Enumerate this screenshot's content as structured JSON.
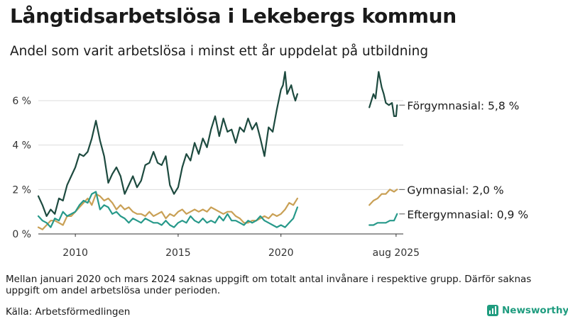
{
  "title": "Långtidsarbetslösa i Lekebergs kommun",
  "subtitle": "Andel som varit arbetslösa i minst ett år uppdelat på utbildning",
  "note": "Mellan januari 2020 och mars 2024 saknas uppgift om totalt antal invånare i respektive grupp. Därför saknas uppgift om andel arbetslösa under perioden.",
  "source": "Källa: Arbetsförmedlingen",
  "brand": "Newsworthy",
  "colors": {
    "forgymnasial": "#1d4a3f",
    "gymnasial": "#c9a055",
    "eftergymnasial": "#27998a",
    "grid": "#dddddd",
    "axis": "#333333"
  },
  "chart_data": {
    "type": "line",
    "title": "Långtidsarbetslösa i Lekebergs kommun",
    "xlabel": "",
    "ylabel": "",
    "xlim": [
      2008.2,
      2025.95
    ],
    "ylim": [
      0,
      7.5
    ],
    "y_ticks": [
      0,
      2,
      4,
      6
    ],
    "y_tick_labels": [
      "0 %",
      "2 %",
      "4 %",
      "6 %"
    ],
    "x_ticks": [
      2010,
      2015,
      2020,
      2025.6
    ],
    "x_tick_labels": [
      "2010",
      "2015",
      "2020",
      "aug 2025"
    ],
    "gap": [
      2020.9,
      2024.25
    ],
    "series": [
      {
        "name": "Förgymnasial",
        "end_label": "Förgymnasial: 5,8 %",
        "color_key": "forgymnasial",
        "segments": [
          [
            [
              2008.2,
              1.7
            ],
            [
              2008.4,
              1.3
            ],
            [
              2008.6,
              0.8
            ],
            [
              2008.8,
              1.1
            ],
            [
              2009.0,
              0.9
            ],
            [
              2009.2,
              1.6
            ],
            [
              2009.4,
              1.5
            ],
            [
              2009.6,
              2.2
            ],
            [
              2009.8,
              2.6
            ],
            [
              2010.0,
              3.0
            ],
            [
              2010.2,
              3.6
            ],
            [
              2010.4,
              3.5
            ],
            [
              2010.6,
              3.7
            ],
            [
              2010.8,
              4.3
            ],
            [
              2011.0,
              5.1
            ],
            [
              2011.2,
              4.2
            ],
            [
              2011.4,
              3.5
            ],
            [
              2011.6,
              2.3
            ],
            [
              2011.8,
              2.7
            ],
            [
              2012.0,
              3.0
            ],
            [
              2012.2,
              2.6
            ],
            [
              2012.4,
              1.8
            ],
            [
              2012.6,
              2.2
            ],
            [
              2012.8,
              2.6
            ],
            [
              2013.0,
              2.1
            ],
            [
              2013.2,
              2.4
            ],
            [
              2013.4,
              3.1
            ],
            [
              2013.6,
              3.2
            ],
            [
              2013.8,
              3.7
            ],
            [
              2014.0,
              3.2
            ],
            [
              2014.2,
              3.1
            ],
            [
              2014.4,
              3.5
            ],
            [
              2014.6,
              2.2
            ],
            [
              2014.8,
              1.8
            ],
            [
              2015.0,
              2.1
            ],
            [
              2015.2,
              3.0
            ],
            [
              2015.4,
              3.6
            ],
            [
              2015.6,
              3.3
            ],
            [
              2015.8,
              4.1
            ],
            [
              2016.0,
              3.6
            ],
            [
              2016.2,
              4.3
            ],
            [
              2016.4,
              3.9
            ],
            [
              2016.6,
              4.7
            ],
            [
              2016.8,
              5.3
            ],
            [
              2017.0,
              4.4
            ],
            [
              2017.2,
              5.2
            ],
            [
              2017.4,
              4.6
            ],
            [
              2017.6,
              4.7
            ],
            [
              2017.8,
              4.1
            ],
            [
              2018.0,
              4.8
            ],
            [
              2018.2,
              4.6
            ],
            [
              2018.4,
              5.2
            ],
            [
              2018.6,
              4.7
            ],
            [
              2018.8,
              5.0
            ],
            [
              2019.0,
              4.3
            ],
            [
              2019.2,
              3.5
            ],
            [
              2019.4,
              4.8
            ],
            [
              2019.6,
              4.6
            ],
            [
              2019.8,
              5.6
            ],
            [
              2020.0,
              6.5
            ],
            [
              2020.1,
              6.7
            ],
            [
              2020.2,
              7.3
            ],
            [
              2020.3,
              6.3
            ],
            [
              2020.4,
              6.5
            ],
            [
              2020.5,
              6.7
            ],
            [
              2020.6,
              6.3
            ],
            [
              2020.7,
              6.0
            ],
            [
              2020.8,
              6.3
            ]
          ],
          [
            [
              2024.3,
              5.7
            ],
            [
              2024.5,
              6.3
            ],
            [
              2024.6,
              6.1
            ],
            [
              2024.75,
              7.3
            ],
            [
              2024.9,
              6.6
            ],
            [
              2025.0,
              6.3
            ],
            [
              2025.1,
              5.9
            ],
            [
              2025.25,
              5.8
            ],
            [
              2025.4,
              5.9
            ],
            [
              2025.5,
              5.3
            ],
            [
              2025.6,
              5.3
            ],
            [
              2025.65,
              5.8
            ]
          ]
        ]
      },
      {
        "name": "Gymnasial",
        "end_label": "Gymnasial: 2,0 %",
        "color_key": "gymnasial",
        "segments": [
          [
            [
              2008.2,
              0.3
            ],
            [
              2008.4,
              0.2
            ],
            [
              2008.6,
              0.4
            ],
            [
              2008.8,
              0.6
            ],
            [
              2009.0,
              0.6
            ],
            [
              2009.2,
              0.5
            ],
            [
              2009.4,
              0.4
            ],
            [
              2009.6,
              0.8
            ],
            [
              2009.8,
              0.8
            ],
            [
              2010.0,
              1.0
            ],
            [
              2010.2,
              1.2
            ],
            [
              2010.4,
              1.4
            ],
            [
              2010.6,
              1.6
            ],
            [
              2010.8,
              1.3
            ],
            [
              2011.0,
              1.8
            ],
            [
              2011.2,
              1.7
            ],
            [
              2011.4,
              1.5
            ],
            [
              2011.6,
              1.6
            ],
            [
              2011.8,
              1.4
            ],
            [
              2012.0,
              1.1
            ],
            [
              2012.2,
              1.3
            ],
            [
              2012.4,
              1.1
            ],
            [
              2012.6,
              1.2
            ],
            [
              2012.8,
              1.0
            ],
            [
              2013.0,
              0.9
            ],
            [
              2013.2,
              0.9
            ],
            [
              2013.4,
              0.8
            ],
            [
              2013.6,
              1.0
            ],
            [
              2013.8,
              0.8
            ],
            [
              2014.0,
              0.9
            ],
            [
              2014.2,
              1.0
            ],
            [
              2014.4,
              0.7
            ],
            [
              2014.6,
              0.9
            ],
            [
              2014.8,
              0.8
            ],
            [
              2015.0,
              1.0
            ],
            [
              2015.2,
              1.1
            ],
            [
              2015.4,
              0.9
            ],
            [
              2015.6,
              1.0
            ],
            [
              2015.8,
              1.1
            ],
            [
              2016.0,
              1.0
            ],
            [
              2016.2,
              1.1
            ],
            [
              2016.4,
              1.0
            ],
            [
              2016.6,
              1.2
            ],
            [
              2016.8,
              1.1
            ],
            [
              2017.0,
              1.0
            ],
            [
              2017.2,
              0.9
            ],
            [
              2017.4,
              1.0
            ],
            [
              2017.6,
              1.0
            ],
            [
              2017.8,
              0.8
            ],
            [
              2018.0,
              0.7
            ],
            [
              2018.2,
              0.5
            ],
            [
              2018.4,
              0.5
            ],
            [
              2018.6,
              0.6
            ],
            [
              2018.8,
              0.6
            ],
            [
              2019.0,
              0.7
            ],
            [
              2019.2,
              0.8
            ],
            [
              2019.4,
              0.7
            ],
            [
              2019.6,
              0.9
            ],
            [
              2019.8,
              0.8
            ],
            [
              2020.0,
              0.9
            ],
            [
              2020.2,
              1.1
            ],
            [
              2020.4,
              1.4
            ],
            [
              2020.6,
              1.3
            ],
            [
              2020.8,
              1.6
            ]
          ],
          [
            [
              2024.3,
              1.3
            ],
            [
              2024.5,
              1.5
            ],
            [
              2024.7,
              1.6
            ],
            [
              2024.9,
              1.8
            ],
            [
              2025.1,
              1.8
            ],
            [
              2025.3,
              2.0
            ],
            [
              2025.5,
              1.9
            ],
            [
              2025.65,
              2.0
            ]
          ]
        ]
      },
      {
        "name": "Eftergymnasial",
        "end_label": "Eftergymnasial: 0,9 %",
        "color_key": "eftergymnasial",
        "segments": [
          [
            [
              2008.2,
              0.8
            ],
            [
              2008.4,
              0.6
            ],
            [
              2008.6,
              0.5
            ],
            [
              2008.8,
              0.3
            ],
            [
              2009.0,
              0.7
            ],
            [
              2009.2,
              0.6
            ],
            [
              2009.4,
              1.0
            ],
            [
              2009.6,
              0.8
            ],
            [
              2009.8,
              0.9
            ],
            [
              2010.0,
              1.0
            ],
            [
              2010.2,
              1.3
            ],
            [
              2010.4,
              1.5
            ],
            [
              2010.6,
              1.4
            ],
            [
              2010.8,
              1.8
            ],
            [
              2011.0,
              1.9
            ],
            [
              2011.2,
              1.1
            ],
            [
              2011.4,
              1.3
            ],
            [
              2011.6,
              1.2
            ],
            [
              2011.8,
              0.9
            ],
            [
              2012.0,
              1.0
            ],
            [
              2012.2,
              0.8
            ],
            [
              2012.4,
              0.7
            ],
            [
              2012.6,
              0.5
            ],
            [
              2012.8,
              0.7
            ],
            [
              2013.0,
              0.6
            ],
            [
              2013.2,
              0.5
            ],
            [
              2013.4,
              0.7
            ],
            [
              2013.6,
              0.6
            ],
            [
              2013.8,
              0.5
            ],
            [
              2014.0,
              0.5
            ],
            [
              2014.2,
              0.4
            ],
            [
              2014.4,
              0.6
            ],
            [
              2014.6,
              0.4
            ],
            [
              2014.8,
              0.3
            ],
            [
              2015.0,
              0.5
            ],
            [
              2015.2,
              0.6
            ],
            [
              2015.4,
              0.5
            ],
            [
              2015.6,
              0.8
            ],
            [
              2015.8,
              0.6
            ],
            [
              2016.0,
              0.5
            ],
            [
              2016.2,
              0.7
            ],
            [
              2016.4,
              0.5
            ],
            [
              2016.6,
              0.6
            ],
            [
              2016.8,
              0.5
            ],
            [
              2017.0,
              0.8
            ],
            [
              2017.2,
              0.6
            ],
            [
              2017.4,
              0.9
            ],
            [
              2017.6,
              0.6
            ],
            [
              2017.8,
              0.6
            ],
            [
              2018.0,
              0.5
            ],
            [
              2018.2,
              0.4
            ],
            [
              2018.4,
              0.6
            ],
            [
              2018.6,
              0.5
            ],
            [
              2018.8,
              0.6
            ],
            [
              2019.0,
              0.8
            ],
            [
              2019.2,
              0.6
            ],
            [
              2019.4,
              0.5
            ],
            [
              2019.6,
              0.4
            ],
            [
              2019.8,
              0.3
            ],
            [
              2020.0,
              0.4
            ],
            [
              2020.2,
              0.3
            ],
            [
              2020.4,
              0.5
            ],
            [
              2020.6,
              0.7
            ],
            [
              2020.8,
              1.2
            ]
          ],
          [
            [
              2024.3,
              0.4
            ],
            [
              2024.5,
              0.4
            ],
            [
              2024.7,
              0.5
            ],
            [
              2024.9,
              0.5
            ],
            [
              2025.1,
              0.5
            ],
            [
              2025.3,
              0.6
            ],
            [
              2025.5,
              0.6
            ],
            [
              2025.65,
              0.9
            ]
          ]
        ]
      }
    ]
  }
}
